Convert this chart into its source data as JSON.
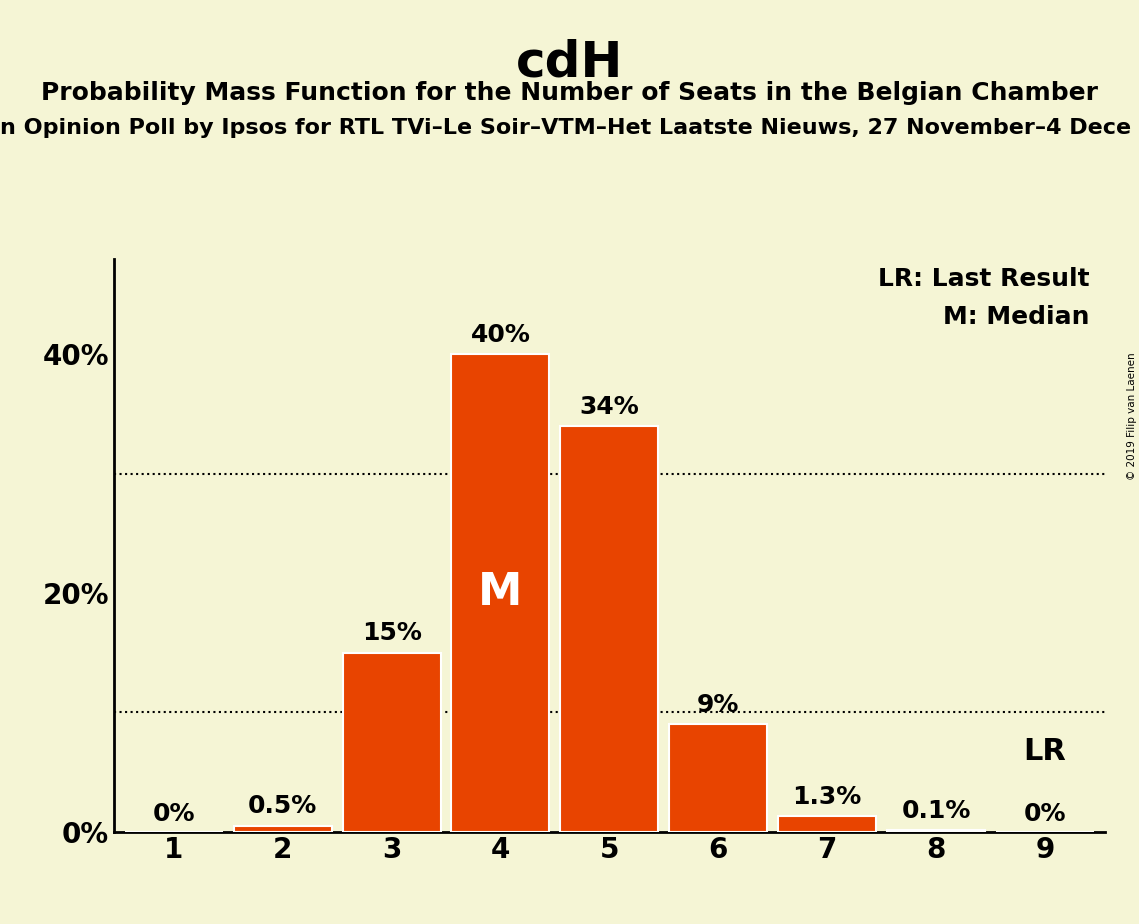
{
  "title": "cdH",
  "subtitle": "Probability Mass Function for the Number of Seats in the Belgian Chamber",
  "subsubtitle": "n Opinion Poll by Ipsos for RTL TVi–Le Soir–VTM–Het Laatste Nieuws, 27 November–4 Dece",
  "watermark": "© 2019 Filip van Laenen",
  "seats": [
    1,
    2,
    3,
    4,
    5,
    6,
    7,
    8,
    9
  ],
  "probabilities": [
    0.0,
    0.5,
    15.0,
    40.0,
    34.0,
    9.0,
    1.3,
    0.1,
    0.0
  ],
  "bar_labels": [
    "0%",
    "0.5%",
    "15%",
    "40%",
    "34%",
    "9%",
    "1.3%",
    "0.1%",
    "0%"
  ],
  "bar_color": "#e84400",
  "bar_edge_color": "#ffffff",
  "median_seat": 4,
  "median_label": "M",
  "lr_seat": 9,
  "lr_label": "LR",
  "dotted_line_1": 30.0,
  "dotted_line_2": 10.0,
  "background_color": "#f5f5d5",
  "yticks": [
    0,
    20,
    40
  ],
  "ylim": [
    0,
    48
  ],
  "legend_lr": "LR: Last Result",
  "legend_m": "M: Median",
  "title_fontsize": 36,
  "subtitle_fontsize": 18,
  "subsubtitle_fontsize": 16,
  "bar_label_fontsize": 18,
  "axis_label_fontsize": 20,
  "legend_fontsize": 18,
  "median_label_fontsize": 32,
  "lr_label_fontsize": 22
}
